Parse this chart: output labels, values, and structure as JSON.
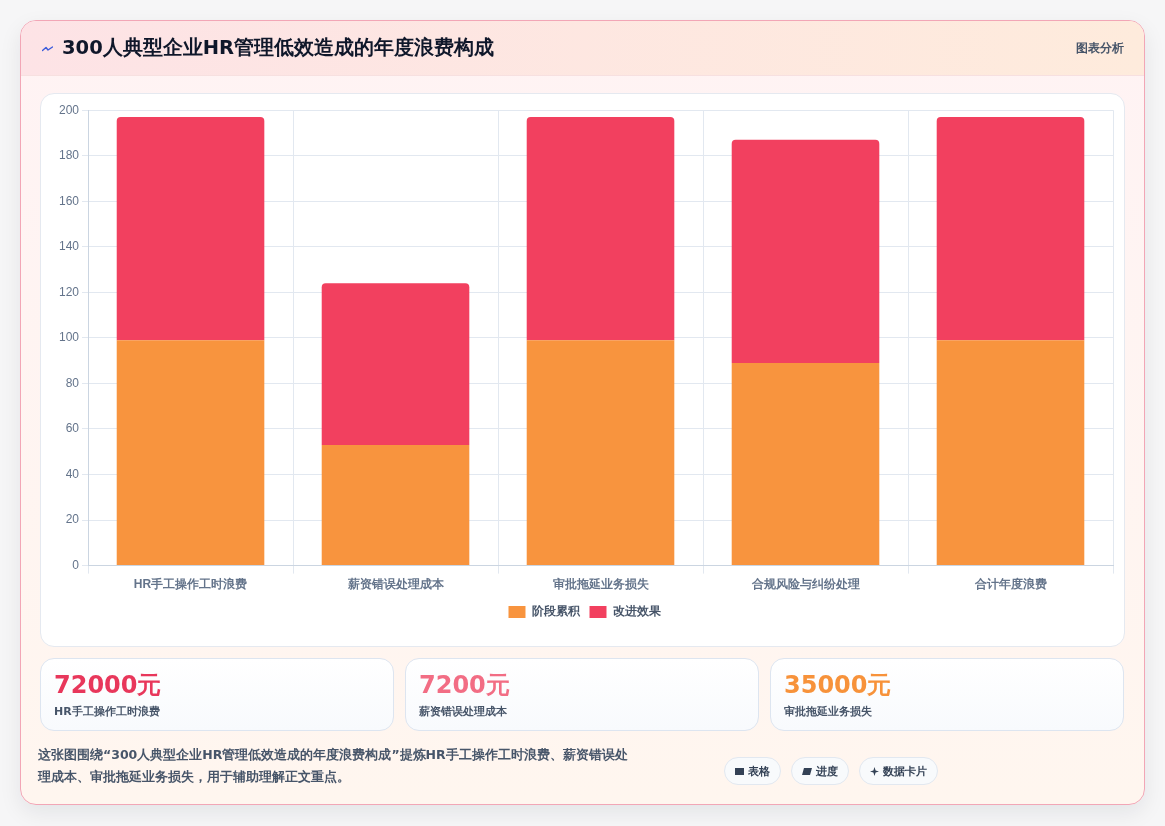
{
  "chart_data": [
    {
      "type": "bar",
      "title": "300人典型企业HR管理低效造成的年度浪费构成",
      "annotations": [
        "图表分析"
      ],
      "categories": [
        "HR手工操作工时浪费",
        "薪资错误处理成本",
        "审批拖延业务损失",
        "合规风险与纠纷处理",
        "合计年度浪费"
      ],
      "series": [
        {
          "name": "阶段累积",
          "color": "#f8943e",
          "values": [
            99,
            53,
            99,
            89,
            99
          ]
        },
        {
          "name": "改进效果",
          "color": "#f2405f",
          "values": [
            98,
            71,
            98,
            98,
            98
          ]
        }
      ],
      "stacked": true,
      "ylim": [
        0,
        200
      ],
      "yticks": [
        0,
        20,
        40,
        60,
        80,
        100,
        120,
        140,
        160,
        180,
        200
      ],
      "grid": true,
      "legend": "bottom"
    },
    {
      "type": "other",
      "title": "72000元",
      "subtitle": "HR手工操作工时浪费"
    },
    {
      "type": "other",
      "title": "7200元",
      "subtitle": "薪资错误处理成本"
    },
    {
      "type": "other",
      "title": "35000元",
      "subtitle": "审批拖延业务损失"
    },
    {
      "type": "other",
      "annotations": [
        "这张图围绕“300人典型企业HR管理低效造成的年度浪费构成”提炼HR手工操作工时浪费、薪资错误处理成本、审批拖延业务损失，用于辅助理解正文重点。",
        "表格",
        "进度",
        "数据卡片"
      ]
    }
  ]
}
